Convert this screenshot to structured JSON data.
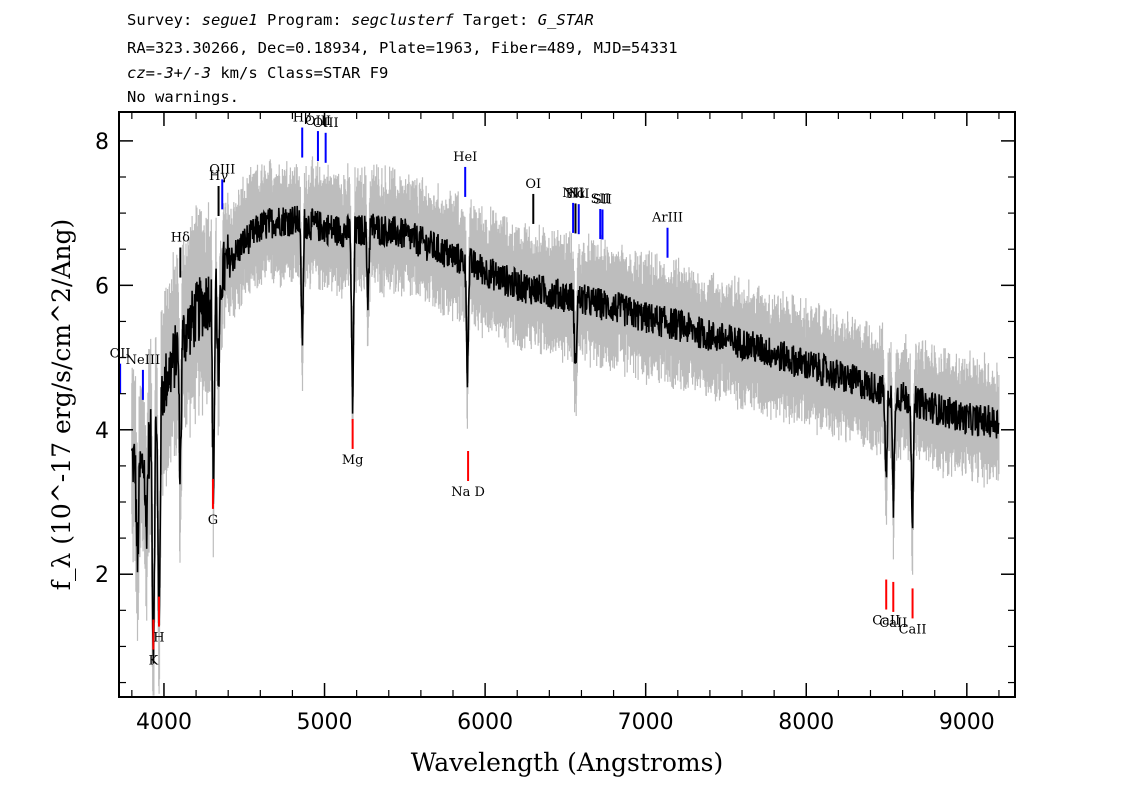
{
  "header": {
    "line1": {
      "survey_label": "Survey:",
      "survey": "segue1",
      "program_label": "Program:",
      "program": "segclusterf",
      "target_label": "Target:",
      "target": "G_STAR"
    },
    "line2": "RA=323.30266, Dec=0.18934, Plate=1963, Fiber=489, MJD=54331",
    "line3": {
      "cz": "cz",
      "eq": "=",
      "value": "-3+/-3",
      "units": " km/s Class=STAR F9"
    },
    "line4": "No warnings."
  },
  "colors": {
    "flux": "#000000",
    "error_band": "#bdbdbd",
    "emission_line": "#0000ff",
    "absorption_line": "#ff0000",
    "sky_line": "#000000"
  },
  "chart_data": {
    "type": "line",
    "xlabel": "Wavelength (Angstroms)",
    "ylabel": "f_λ (10^-17 erg/s/cm^2/Ang)",
    "xlim": [
      3720,
      9300
    ],
    "ylim": [
      0.3,
      8.4
    ],
    "xticks": [
      4000,
      5000,
      6000,
      7000,
      8000,
      9000
    ],
    "yticks": [
      2,
      4,
      6,
      8
    ],
    "continuum": {
      "x": [
        3800,
        3850,
        3900,
        3950,
        4000,
        4100,
        4200,
        4300,
        4400,
        4500,
        4600,
        4700,
        4800,
        4900,
        5000,
        5100,
        5200,
        5300,
        5400,
        5500,
        5600,
        5700,
        5800,
        5900,
        6000,
        6200,
        6400,
        6600,
        6800,
        7000,
        7200,
        7400,
        7600,
        7800,
        8000,
        8200,
        8400,
        8600,
        8800,
        9000,
        9200
      ],
      "y": [
        3.6,
        3.4,
        3.7,
        4.1,
        4.6,
        5.2,
        5.6,
        5.9,
        6.3,
        6.6,
        6.8,
        6.9,
        6.9,
        6.85,
        6.8,
        6.75,
        6.75,
        6.8,
        6.75,
        6.7,
        6.6,
        6.5,
        6.4,
        6.3,
        6.2,
        6.0,
        5.9,
        5.8,
        5.7,
        5.55,
        5.45,
        5.3,
        5.2,
        5.05,
        4.9,
        4.75,
        4.6,
        4.45,
        4.3,
        4.15,
        4.1
      ]
    },
    "absorption_features": [
      {
        "x": 3934,
        "y": 0.7
      },
      {
        "x": 3969,
        "y": 0.9
      },
      {
        "x": 3835,
        "y": 2.1
      },
      {
        "x": 3889,
        "y": 2.5
      },
      {
        "x": 4101,
        "y": 3.3
      },
      {
        "x": 4308,
        "y": 3.0
      },
      {
        "x": 4340,
        "y": 4.4
      },
      {
        "x": 4861,
        "y": 5.1
      },
      {
        "x": 5175,
        "y": 4.2
      },
      {
        "x": 5270,
        "y": 5.8
      },
      {
        "x": 5890,
        "y": 4.8
      },
      {
        "x": 6563,
        "y": 4.7
      },
      {
        "x": 8498,
        "y": 3.2
      },
      {
        "x": 8542,
        "y": 2.9
      },
      {
        "x": 8662,
        "y": 2.6
      }
    ],
    "lines": [
      {
        "label": "OII",
        "wave": 3727,
        "kind": "emission"
      },
      {
        "label": "NeIII",
        "wave": 3869,
        "kind": "emission"
      },
      {
        "label": "Hδ",
        "wave": 4102,
        "kind": "sky"
      },
      {
        "label": "Hγ",
        "wave": 4340,
        "kind": "sky"
      },
      {
        "label": "OIII",
        "wave": 4363,
        "kind": "emission"
      },
      {
        "label": "Hβ",
        "wave": 4861,
        "kind": "emission"
      },
      {
        "label": "OIII",
        "wave": 4959,
        "kind": "emission"
      },
      {
        "label": "OIII",
        "wave": 5007,
        "kind": "emission"
      },
      {
        "label": "HeI",
        "wave": 5876,
        "kind": "emission"
      },
      {
        "label": "OI",
        "wave": 6300,
        "kind": "sky"
      },
      {
        "label": "NII",
        "wave": 6548,
        "kind": "emission"
      },
      {
        "label": "Hα",
        "wave": 6563,
        "kind": "sky"
      },
      {
        "label": "NII",
        "wave": 6583,
        "kind": "emission"
      },
      {
        "label": "SII",
        "wave": 6717,
        "kind": "emission"
      },
      {
        "label": "SII",
        "wave": 6731,
        "kind": "emission"
      },
      {
        "label": "ArIII",
        "wave": 7136,
        "kind": "emission"
      },
      {
        "label": "K",
        "wave": 3934,
        "kind": "absorption"
      },
      {
        "label": "H",
        "wave": 3969,
        "kind": "absorption"
      },
      {
        "label": "G",
        "wave": 4305,
        "kind": "absorption"
      },
      {
        "label": "Mg",
        "wave": 5175,
        "kind": "absorption"
      },
      {
        "label": "Na D",
        "wave": 5894,
        "kind": "absorption"
      },
      {
        "label": "CaII",
        "wave": 8498,
        "kind": "absorption"
      },
      {
        "label": "CaII",
        "wave": 8542,
        "kind": "absorption"
      },
      {
        "label": "CaII",
        "wave": 8662,
        "kind": "absorption"
      }
    ]
  }
}
